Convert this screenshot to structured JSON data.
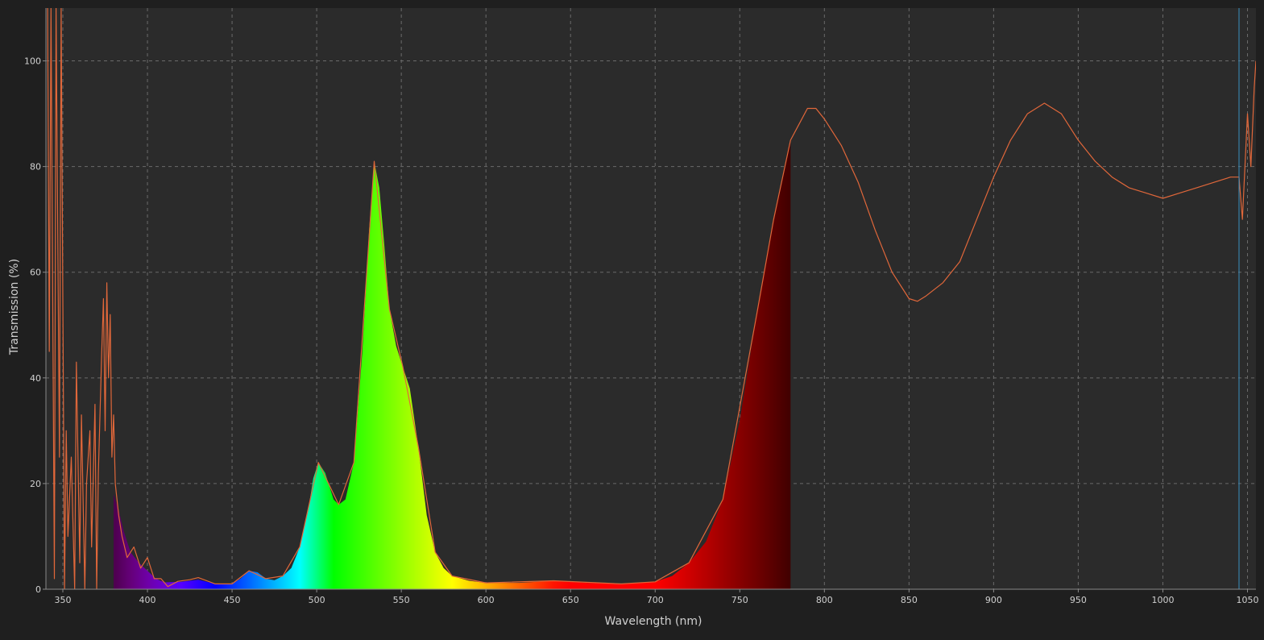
{
  "chart_data": {
    "type": "area",
    "title": "",
    "xlabel": "Wavelength (nm)",
    "ylabel": "Transmission (%)",
    "xlim": [
      340,
      1055
    ],
    "ylim": [
      0,
      110
    ],
    "x_ticks": [
      350,
      400,
      450,
      500,
      550,
      600,
      650,
      700,
      750,
      800,
      850,
      900,
      950,
      1000,
      1050
    ],
    "y_ticks": [
      0,
      20,
      40,
      60,
      80,
      100
    ],
    "grid": true,
    "marker_line_x": 1045,
    "colors": {
      "background": "#2b2b2b",
      "frame": "#1f1f1f",
      "grid": "#6a6a6a",
      "text": "#d0d0d0",
      "curve": "#e0673a",
      "marker": "#3a90c0"
    },
    "series": [
      {
        "kind": "visible-spectrum-fill",
        "range": [
          380,
          780
        ],
        "points": [
          [
            380,
            18
          ],
          [
            383,
            15
          ],
          [
            386,
            11
          ],
          [
            390,
            7
          ],
          [
            395,
            5
          ],
          [
            400,
            3.5
          ],
          [
            405,
            2
          ],
          [
            410,
            1.3
          ],
          [
            420,
            1.4
          ],
          [
            430,
            1.8
          ],
          [
            440,
            1
          ],
          [
            450,
            1
          ],
          [
            455,
            2
          ],
          [
            460,
            3.5
          ],
          [
            465,
            3.2
          ],
          [
            470,
            2
          ],
          [
            475,
            1.7
          ],
          [
            480,
            2.5
          ],
          [
            485,
            4
          ],
          [
            490,
            8
          ],
          [
            495,
            15
          ],
          [
            498,
            21
          ],
          [
            501,
            24
          ],
          [
            505,
            22
          ],
          [
            510,
            17
          ],
          [
            513,
            16
          ],
          [
            517,
            17
          ],
          [
            522,
            24
          ],
          [
            527,
            45
          ],
          [
            531,
            68
          ],
          [
            534,
            81
          ],
          [
            537,
            76
          ],
          [
            540,
            65
          ],
          [
            543,
            53
          ],
          [
            547,
            46
          ],
          [
            551,
            42
          ],
          [
            555,
            38
          ],
          [
            560,
            27
          ],
          [
            565,
            14
          ],
          [
            570,
            7
          ],
          [
            575,
            4
          ],
          [
            580,
            2.5
          ],
          [
            590,
            1.6
          ],
          [
            600,
            1.2
          ],
          [
            620,
            1.2
          ],
          [
            640,
            1.6
          ],
          [
            660,
            1.2
          ],
          [
            680,
            1
          ],
          [
            700,
            1.4
          ],
          [
            710,
            2.5
          ],
          [
            720,
            5
          ],
          [
            730,
            9
          ],
          [
            740,
            17
          ],
          [
            750,
            32
          ],
          [
            760,
            52
          ],
          [
            770,
            70
          ],
          [
            780,
            85
          ]
        ]
      },
      {
        "kind": "transmission-curve",
        "points": [
          [
            341,
            110
          ],
          [
            342,
            45
          ],
          [
            343,
            110
          ],
          [
            345,
            2
          ],
          [
            346,
            110
          ],
          [
            348,
            25
          ],
          [
            349,
            110
          ],
          [
            351,
            0
          ],
          [
            352,
            30
          ],
          [
            353,
            10
          ],
          [
            355,
            25
          ],
          [
            357,
            0
          ],
          [
            358,
            43
          ],
          [
            360,
            5
          ],
          [
            361,
            33
          ],
          [
            363,
            0
          ],
          [
            364,
            20
          ],
          [
            366,
            30
          ],
          [
            367,
            8
          ],
          [
            369,
            35
          ],
          [
            370,
            0
          ],
          [
            371,
            22
          ],
          [
            373,
            45
          ],
          [
            374,
            55
          ],
          [
            375,
            30
          ],
          [
            376,
            58
          ],
          [
            377,
            40
          ],
          [
            378,
            52
          ],
          [
            379,
            25
          ],
          [
            380,
            33
          ],
          [
            381,
            20
          ],
          [
            383,
            14
          ],
          [
            385,
            10
          ],
          [
            388,
            6
          ],
          [
            392,
            8
          ],
          [
            396,
            4
          ],
          [
            400,
            6
          ],
          [
            404,
            2
          ],
          [
            408,
            2
          ],
          [
            412,
            0.5
          ],
          [
            418,
            1.5
          ],
          [
            425,
            1.8
          ],
          [
            430,
            2.2
          ],
          [
            440,
            1
          ],
          [
            450,
            1
          ],
          [
            460,
            3.5
          ],
          [
            470,
            2
          ],
          [
            480,
            2.5
          ],
          [
            490,
            8
          ],
          [
            501,
            24
          ],
          [
            513,
            16
          ],
          [
            522,
            24
          ],
          [
            534,
            81
          ],
          [
            543,
            53
          ],
          [
            551,
            42
          ],
          [
            560,
            27
          ],
          [
            570,
            7
          ],
          [
            580,
            2.5
          ],
          [
            600,
            1.2
          ],
          [
            640,
            1.6
          ],
          [
            680,
            1
          ],
          [
            700,
            1.4
          ],
          [
            720,
            5
          ],
          [
            740,
            17
          ],
          [
            760,
            52
          ],
          [
            770,
            70
          ],
          [
            780,
            85
          ],
          [
            785,
            88
          ],
          [
            790,
            91
          ],
          [
            795,
            91
          ],
          [
            800,
            89
          ],
          [
            810,
            84
          ],
          [
            820,
            77
          ],
          [
            830,
            68
          ],
          [
            840,
            60
          ],
          [
            850,
            55
          ],
          [
            855,
            54.5
          ],
          [
            860,
            55.5
          ],
          [
            870,
            58
          ],
          [
            880,
            62
          ],
          [
            890,
            70
          ],
          [
            900,
            78
          ],
          [
            910,
            85
          ],
          [
            920,
            90
          ],
          [
            930,
            92
          ],
          [
            940,
            90
          ],
          [
            950,
            85
          ],
          [
            960,
            81
          ],
          [
            970,
            78
          ],
          [
            980,
            76
          ],
          [
            990,
            75
          ],
          [
            1000,
            74
          ],
          [
            1010,
            75
          ],
          [
            1020,
            76
          ],
          [
            1030,
            77
          ],
          [
            1040,
            78
          ],
          [
            1045,
            78
          ],
          [
            1047,
            70
          ],
          [
            1050,
            90
          ],
          [
            1052,
            80
          ],
          [
            1054,
            95
          ],
          [
            1055,
            100
          ]
        ]
      }
    ]
  }
}
